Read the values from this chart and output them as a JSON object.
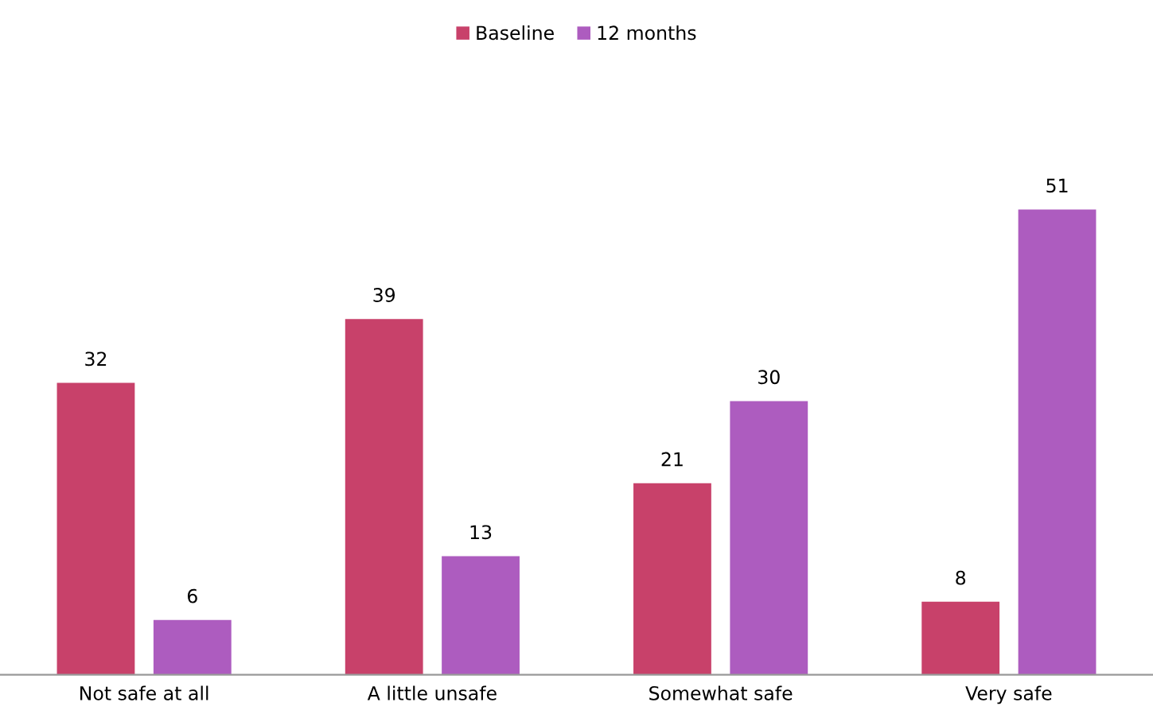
{
  "chart_data": {
    "type": "bar",
    "categories": [
      "Not safe at all",
      "A little unsafe",
      "Somewhat safe",
      "Very safe"
    ],
    "series": [
      {
        "name": "Baseline",
        "color": "#c8416a",
        "values": [
          32,
          39,
          21,
          8
        ]
      },
      {
        "name": "12 months",
        "color": "#ad5cbf",
        "values": [
          6,
          13,
          30,
          51
        ]
      }
    ],
    "data_labels": true,
    "legend": "top",
    "grid": false,
    "tick_labels": "x"
  }
}
